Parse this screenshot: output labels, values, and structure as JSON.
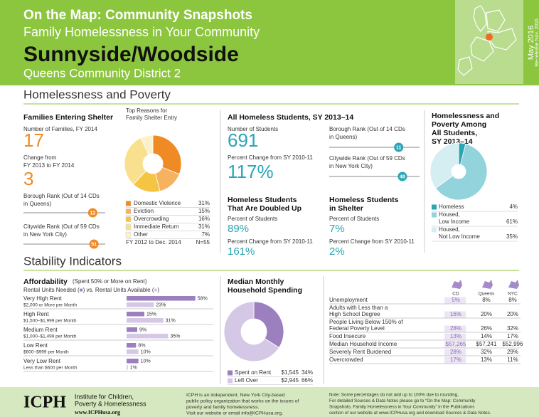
{
  "header": {
    "title": "On the Map: Community Snapshots",
    "subtitle": "Family Homelessness in Your Community",
    "community": "Sunnyside/Woodside",
    "district": "Queens Community District 2",
    "date": "May 2016",
    "rerelease": "Re-release Nov. 2016"
  },
  "section1": "Homelessness and Poverty",
  "families": {
    "title": "Families Entering Shelter",
    "count_label": "Number of Families, FY 2014",
    "count": "17",
    "change_label": [
      "Change from",
      "FY 2013 to FY 2014"
    ],
    "change": "3",
    "borough_rank": {
      "label": [
        "Borough Rank (Out of 14 CDs",
        "in Queens)"
      ],
      "value": 12,
      "xlim": [
        1,
        14
      ]
    },
    "citywide_rank": {
      "label": [
        "Citywide Rank (Out of 59 CDs",
        "in New York City)"
      ],
      "value": 51,
      "xlim": [
        1,
        59
      ]
    }
  },
  "reasons_chart": {
    "type": "pie",
    "title": [
      "Top Reasons for",
      "Family Shelter Entry"
    ],
    "categories": [
      "Domestic Violence",
      "Eviction",
      "Overcrowding",
      "Immediate Return",
      "Other"
    ],
    "values": [
      31,
      15,
      16,
      31,
      7
    ],
    "value_labels": [
      "31%",
      "15%",
      "16%",
      "31%",
      "7%"
    ],
    "colors": [
      "#f08a24",
      "#f6b25e",
      "#f4c542",
      "#f9e08e",
      "#fdf1cc"
    ],
    "note": "FY 2012 to Dec. 2014",
    "n": "N=55"
  },
  "students": {
    "title": "All Homeless Students, SY 2013–14",
    "count_label": "Number of Students",
    "count": "691",
    "change_label": "Percent Change from SY 2010-11",
    "change": "117%",
    "borough_rank": {
      "label": [
        "Borough Rank (Out of 14 CDs",
        "in Queens)"
      ],
      "value": 11,
      "xlim": [
        1,
        14
      ]
    },
    "citywide_rank": {
      "label": [
        "Citywide Rank (Out of 59 CDs",
        "in New York City)"
      ],
      "value": 48,
      "xlim": [
        1,
        59
      ]
    },
    "doubled_up": {
      "title": [
        "Homeless Students",
        "That Are Doubled Up"
      ],
      "pct_label": "Percent of Students",
      "pct": "89%",
      "change_label": "Percent Change from SY 2010-11",
      "change": "161%"
    },
    "shelter": {
      "title": [
        "Homeless Students",
        "in Shelter"
      ],
      "pct_label": "Percent of Students",
      "pct": "7%",
      "change_label": "Percent Change from SY 2010-11",
      "change": "2%"
    }
  },
  "poverty_chart": {
    "type": "pie",
    "title": [
      "Homelessness and",
      "Poverty Among",
      "All Students,",
      "SY 2013–14"
    ],
    "categories": [
      [
        "Homeless"
      ],
      [
        "Housed,",
        "Low Income"
      ],
      [
        "Housed,",
        "Not Low Income"
      ]
    ],
    "values": [
      4,
      61,
      35
    ],
    "value_labels": [
      "4%",
      "61%",
      "35%"
    ],
    "colors": [
      "#2aa6b4",
      "#93d3dc",
      "#d5eef2"
    ]
  },
  "section2": "Stability Indicators",
  "affordability": {
    "type": "bar",
    "title": "Affordability",
    "title_note": "(Spent 50% or More on Rent)",
    "legend_connectors": [
      " (",
      ") vs. ",
      " (",
      ")"
    ],
    "categories": [
      [
        "Very High Rent",
        "$2,000 or More per Month"
      ],
      [
        "High Rent",
        "$1,500–$1,999 per Month"
      ],
      [
        "Medium Rent",
        "$1,000–$1,499 per Month"
      ],
      [
        "Low Rent",
        "$600–$999 per Month"
      ],
      [
        "Very Low Rent",
        "Less than $600 per Month"
      ]
    ],
    "xlim": [
      0,
      60
    ],
    "series": [
      {
        "name": "Rental Units Needed",
        "color": "#9b7fbf",
        "values": [
          58,
          15,
          9,
          8,
          10
        ],
        "value_labels": [
          "58%",
          "15%",
          "9%",
          "8%",
          "10%"
        ]
      },
      {
        "name": "Rental Units Available",
        "color": "#d5c8e6",
        "values": [
          23,
          31,
          35,
          10,
          1
        ],
        "value_labels": [
          "23%",
          "31%",
          "35%",
          "10%",
          "1%"
        ]
      }
    ]
  },
  "spending": {
    "type": "pie",
    "title": [
      "Median Monthly",
      "Household Spending"
    ],
    "categories": [
      "Spent on Rent",
      "Left Over"
    ],
    "amounts": [
      "$1,545",
      "$2,945"
    ],
    "values": [
      34,
      66
    ],
    "value_labels": [
      "34%",
      "66%"
    ],
    "colors": [
      "#9b7fbf",
      "#d5c8e6"
    ]
  },
  "indicators": {
    "columns": [
      "CD",
      "Queens",
      "NYC"
    ],
    "rows": [
      [
        [
          "Unemployment"
        ],
        "5%",
        "8%",
        "8%"
      ],
      [
        [
          "Adults with Less than a",
          "High School Degree"
        ],
        "16%",
        "20%",
        "20%"
      ],
      [
        [
          "People Living Below 150% of",
          "Federal Poverty Level"
        ],
        "28%",
        "26%",
        "32%"
      ],
      [
        [
          "Food Insecure"
        ],
        "13%",
        "14%",
        "17%"
      ],
      [
        [
          "Median Household Income"
        ],
        "$57,265",
        "$57,241",
        "$52,996"
      ],
      [
        [
          "Severely Rent Burdened"
        ],
        "28%",
        "32%",
        "29%"
      ],
      [
        [
          "Overcrowded"
        ],
        "17%",
        "13%",
        "11%"
      ]
    ]
  },
  "footer": {
    "logo": "ICPH",
    "institute": [
      "Institute for Children,",
      "Poverty & Homelessness"
    ],
    "url": "www.ICPHusa.org",
    "about": [
      "ICPH is an independent, New York City-based",
      "public policy organization that works on the issues of",
      "poverty and family homelessness.",
      "Visit our website or email info@ICPHusa.org."
    ],
    "notes": [
      "Note: Some percentages do not add up to 100% due to rounding.",
      "For detailed Sources & Data Notes please go to “On the Map: Community",
      "Snapshots, Family Homelessness in Your Community” in the Publications",
      "section of our website at www.ICPHusa.org and download Sources & Data Notes."
    ]
  }
}
